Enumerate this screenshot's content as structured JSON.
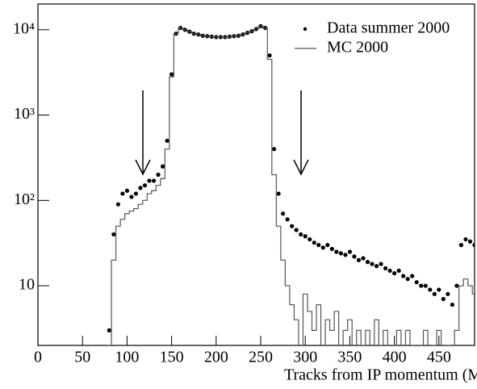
{
  "chart_data": {
    "type": "histogram",
    "xlabel": "Tracks from IP momentum (MeV/c)",
    "x": [
      80,
      85,
      90,
      95,
      100,
      105,
      110,
      115,
      120,
      125,
      130,
      135,
      140,
      145,
      150,
      155,
      160,
      165,
      170,
      175,
      180,
      185,
      190,
      195,
      200,
      205,
      210,
      215,
      220,
      225,
      230,
      235,
      240,
      245,
      250,
      255,
      260,
      265,
      270,
      275,
      280,
      285,
      290,
      295,
      300,
      305,
      310,
      315,
      320,
      325,
      330,
      335,
      340,
      345,
      350,
      355,
      360,
      365,
      370,
      375,
      380,
      385,
      390,
      395,
      400,
      405,
      410,
      415,
      420,
      425,
      430,
      435,
      440,
      445,
      450,
      455,
      460,
      465,
      470,
      475,
      480,
      485,
      490
    ],
    "bin_width": 5,
    "series": [
      {
        "name": "Data summer 2000",
        "type": "scatter",
        "color": "#000000",
        "values": [
          3,
          40,
          90,
          120,
          130,
          110,
          120,
          140,
          150,
          170,
          170,
          200,
          250,
          500,
          3000,
          9000,
          10500,
          10000,
          9500,
          9000,
          8800,
          8500,
          8400,
          8300,
          8200,
          8200,
          8200,
          8300,
          8400,
          8500,
          8800,
          9200,
          9600,
          10200,
          11000,
          10500,
          5000,
          400,
          120,
          70,
          60,
          50,
          45,
          40,
          38,
          35,
          32,
          30,
          28,
          30,
          27,
          25,
          24,
          23,
          25,
          22,
          20,
          21,
          19,
          18,
          17,
          18,
          16,
          15,
          14,
          15,
          13,
          12,
          13,
          11,
          10,
          10,
          9,
          8,
          9,
          7,
          8,
          6,
          10,
          30,
          35,
          33,
          30
        ]
      },
      {
        "name": "MC 2000",
        "type": "step",
        "color": "#555555",
        "values": [
          2,
          20,
          50,
          60,
          70,
          75,
          80,
          90,
          100,
          120,
          130,
          150,
          180,
          400,
          2800,
          9000,
          10500,
          10000,
          9500,
          9000,
          8800,
          8500,
          8400,
          8300,
          8200,
          8200,
          8200,
          8300,
          8400,
          8500,
          8800,
          9200,
          9600,
          10200,
          11000,
          10500,
          4500,
          200,
          50,
          20,
          10,
          6,
          4,
          1,
          8,
          5,
          3,
          6,
          1,
          4,
          3,
          5,
          1,
          3,
          4,
          1,
          3,
          2,
          3,
          1,
          4,
          2,
          3,
          1,
          2,
          3,
          1,
          3,
          2,
          1,
          2,
          3,
          1,
          2,
          3,
          1,
          2,
          1,
          3,
          10,
          12,
          10,
          8
        ]
      }
    ],
    "xlim": [
      0,
      490
    ],
    "xticks": [
      0,
      50,
      100,
      150,
      200,
      250,
      300,
      350,
      400,
      450
    ],
    "ylim": [
      2,
      20000
    ],
    "log_y": true,
    "yticks": [
      10,
      {
        "value": 100,
        "label": "10²"
      },
      {
        "value": 1000,
        "label": "10³"
      },
      {
        "value": 10000,
        "label": "10⁴"
      }
    ],
    "legend": "upper right"
  }
}
